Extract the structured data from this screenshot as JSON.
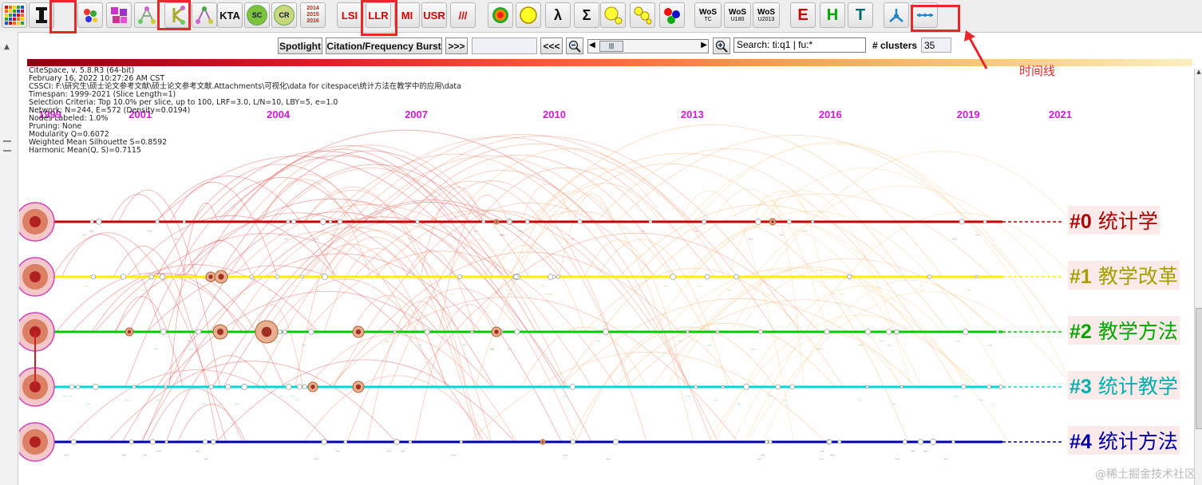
{
  "toolbar": {
    "buttons": [
      {
        "name": "color-grid-icon"
      },
      {
        "name": "text-cursor-icon"
      },
      {
        "name": "palette-icon"
      },
      {
        "name": "tiles-icon"
      },
      {
        "name": "network-a-icon"
      },
      {
        "name": "network-k-icon"
      },
      {
        "name": "network-a2-icon"
      },
      {
        "name": "kta-button",
        "label": "KTA"
      },
      {
        "name": "sc-button",
        "label": "SC"
      },
      {
        "name": "cr-button",
        "label": "CR"
      },
      {
        "name": "years-button",
        "label": "2014 2015 2016"
      },
      {
        "name": "lsi-button",
        "label": "LSI"
      },
      {
        "name": "llr-button",
        "label": "LLR"
      },
      {
        "name": "mi-button",
        "label": "MI"
      },
      {
        "name": "usr-button",
        "label": "USR"
      },
      {
        "name": "slash-button",
        "label": "///"
      },
      {
        "name": "target-icon"
      },
      {
        "name": "cluster-yellow-icon"
      },
      {
        "name": "lambda-icon",
        "label": "λ"
      },
      {
        "name": "sigma-icon",
        "label": "Σ"
      },
      {
        "name": "bubble-icon"
      },
      {
        "name": "bubbles-icon"
      },
      {
        "name": "rgb-dots-icon"
      },
      {
        "name": "wos-tc-button",
        "label": "WoS",
        "sub": "TC"
      },
      {
        "name": "wos-u180-button",
        "label": "WoS",
        "sub": "U180"
      },
      {
        "name": "wos-u2013-button",
        "label": "WoS",
        "sub": "U2013"
      },
      {
        "name": "e-button",
        "label": "E"
      },
      {
        "name": "h-button",
        "label": "H"
      },
      {
        "name": "t-button",
        "label": "T"
      },
      {
        "name": "cluster-view-icon"
      },
      {
        "name": "timeline-view-icon"
      }
    ]
  },
  "controls": {
    "spotlight_label": "Spotlight",
    "burst_label": "Citation/Frequency Burst",
    "forward_label": ">>>",
    "back_label": "<<<",
    "search_value": "Search: ti:q1 | fu:*",
    "clusters_label": "# clusters",
    "clusters_value": "35"
  },
  "info": {
    "lines": [
      "CiteSpace, v. 5.8.R3 (64-bit)",
      "February 16, 2022 10:27:26 AM CST",
      "CSSCI: F:\\研究生\\硕士论文参考文献\\硕士论文参考文献.Attachments\\可视化\\data for citespace\\统计方法在教学中的应用\\data",
      "Timespan: 1999-2021 (Slice Length=1)",
      "Selection Criteria: Top 10.0% per slice, up to 100, LRF=3.0, L/N=10, LBY=5, e=1.0",
      "Network: N=244, E=572 (Density=0.0194)",
      "Nodes Labeled: 1.0%",
      "Pruning: None",
      "Modularity Q=0.6072",
      "Weighted Mean Silhouette S=0.8592",
      "Harmonic Mean(Q, S)=0.7115"
    ]
  },
  "chart_data": {
    "type": "timeline",
    "years": [
      "1999",
      "2001",
      "2004",
      "2007",
      "2010",
      "2013",
      "2016",
      "2019",
      "2021"
    ],
    "clusters": [
      {
        "id": "#0",
        "name": "统计学",
        "color": "#cc0000",
        "labelColor": "#b30000"
      },
      {
        "id": "#1",
        "name": "教学改革",
        "color": "#ffee00",
        "labelColor": "#a5a000"
      },
      {
        "id": "#2",
        "name": "教学方法",
        "color": "#00cc00",
        "labelColor": "#00a800"
      },
      {
        "id": "#3",
        "name": "统计教学",
        "color": "#00d8d8",
        "labelColor": "#00b0b0"
      },
      {
        "id": "#4",
        "name": "统计方法",
        "color": "#0000aa",
        "labelColor": "#0000aa"
      }
    ]
  },
  "annotation": "时间线",
  "watermark": "@稀土掘金技术社区"
}
